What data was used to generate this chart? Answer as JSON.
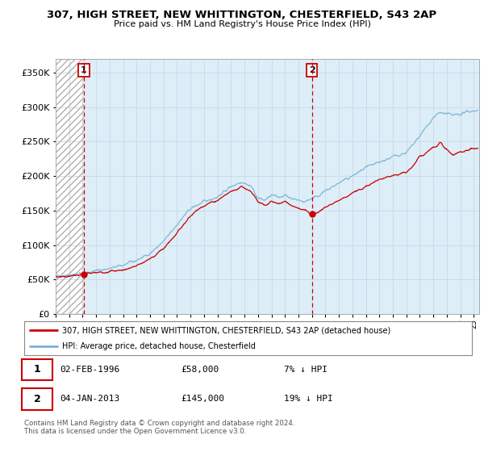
{
  "title_line1": "307, HIGH STREET, NEW WHITTINGTON, CHESTERFIELD, S43 2AP",
  "title_line2": "Price paid vs. HM Land Registry's House Price Index (HPI)",
  "legend_label1": "307, HIGH STREET, NEW WHITTINGTON, CHESTERFIELD, S43 2AP (detached house)",
  "legend_label2": "HPI: Average price, detached house, Chesterfield",
  "footnote": "Contains HM Land Registry data © Crown copyright and database right 2024.\nThis data is licensed under the Open Government Licence v3.0.",
  "annotation1_date": "02-FEB-1996",
  "annotation1_price": "£58,000",
  "annotation1_hpi": "7% ↓ HPI",
  "annotation2_date": "04-JAN-2013",
  "annotation2_price": "£145,000",
  "annotation2_hpi": "19% ↓ HPI",
  "sale1_year": 1996.09,
  "sale1_price": 58000,
  "sale2_year": 2013.01,
  "sale2_price": 145000,
  "hpi_color": "#7ab3d4",
  "price_color": "#cc0000",
  "dashed_line_color": "#cc0000",
  "ylim_max": 370000,
  "yticks": [
    0,
    50000,
    100000,
    150000,
    200000,
    250000,
    300000,
    350000
  ],
  "xstart": 1994.0,
  "xend": 2025.4
}
